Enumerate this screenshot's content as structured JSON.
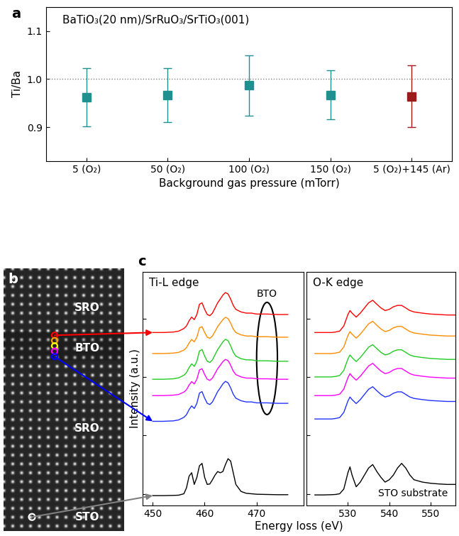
{
  "chart_data": [
    {
      "type": "scatter",
      "panel_label": "a",
      "annotation": "BaTiO₃(20 nm)/SrRuO₃/SrTiO₃(001)",
      "xlabel": "Background gas pressure (mTorr)",
      "ylabel": "Ti/Ba",
      "categories": [
        "5 (O₂)",
        "50 (O₂)",
        "100 (O₂)",
        "150 (O₂)",
        "5 (O₂)+145 (Ar)"
      ],
      "values": [
        0.962,
        0.966,
        0.987,
        0.967,
        0.964
      ],
      "errors": [
        0.061,
        0.056,
        0.063,
        0.051,
        0.064
      ],
      "colors": [
        "#1f8f8f",
        "#1f8f8f",
        "#1f8f8f",
        "#1f8f8f",
        "#9b1b1b"
      ],
      "marker": "square",
      "reference_line": 1.0,
      "ylim": [
        0.83,
        1.15
      ],
      "yticks": [
        0.9,
        {
          "value": 1.0,
          "label": "1.0"
        },
        1.1
      ],
      "grid": false
    },
    {
      "type": "image",
      "panel_label": "b",
      "labels": [
        "SRO",
        "BTO",
        "SRO",
        "STO"
      ]
    },
    {
      "type": "line",
      "panel_label": "c",
      "title": "Ti-L edge",
      "xlabel": "Energy loss (eV)",
      "ylabel": "Intensity (a.u.)",
      "annotations": [
        {
          "text": "BTO",
          "x": 472
        }
      ],
      "x": [
        450,
        452,
        454,
        455,
        456,
        456.5,
        457,
        457.5,
        458,
        458.5,
        459,
        459.5,
        460,
        460.5,
        461,
        461.5,
        462,
        462.5,
        463,
        463.5,
        464,
        464.5,
        465,
        465.5,
        466,
        467,
        468,
        469,
        470,
        472,
        474,
        476
      ],
      "series": [
        {
          "color": "#ff0000",
          "values": [
            7.4,
            7.4,
            7.42,
            7.46,
            7.57,
            7.68,
            7.9,
            8.06,
            7.95,
            8.17,
            8.61,
            8.67,
            8.39,
            8.17,
            8.12,
            8.23,
            8.45,
            8.67,
            8.83,
            9.0,
            9.11,
            9.05,
            8.83,
            8.56,
            8.39,
            8.28,
            8.23,
            8.23,
            8.19,
            8.19,
            8.17,
            8.17
          ]
        },
        {
          "color": "#ff8c00",
          "values": [
            6.5,
            6.5,
            6.52,
            6.55,
            6.65,
            6.75,
            6.95,
            7.1,
            7.0,
            7.2,
            7.6,
            7.65,
            7.4,
            7.2,
            7.15,
            7.25,
            7.45,
            7.65,
            7.8,
            7.95,
            8.05,
            8.0,
            7.8,
            7.55,
            7.4,
            7.3,
            7.25,
            7.25,
            7.22,
            7.22,
            7.2,
            7.2
          ]
        },
        {
          "color": "#22cc22",
          "values": [
            5.4,
            5.4,
            5.42,
            5.46,
            5.57,
            5.68,
            5.9,
            6.06,
            5.95,
            6.17,
            6.61,
            6.67,
            6.39,
            6.17,
            6.12,
            6.23,
            6.45,
            6.67,
            6.83,
            7.0,
            7.11,
            7.05,
            6.83,
            6.56,
            6.39,
            6.28,
            6.23,
            6.23,
            6.19,
            6.19,
            6.17,
            6.17
          ]
        },
        {
          "color": "#ff00ff",
          "values": [
            4.7,
            4.7,
            4.72,
            4.75,
            4.85,
            4.95,
            5.15,
            5.3,
            5.2,
            5.4,
            5.8,
            5.85,
            5.6,
            5.4,
            5.35,
            5.45,
            5.65,
            5.85,
            6.0,
            6.15,
            6.25,
            6.2,
            6.0,
            5.75,
            5.6,
            5.5,
            5.45,
            5.45,
            5.42,
            5.42,
            5.4,
            5.4
          ]
        },
        {
          "color": "#2233ff",
          "values": [
            3.6,
            3.6,
            3.62,
            3.66,
            3.77,
            3.88,
            4.1,
            4.26,
            4.15,
            4.37,
            4.81,
            4.87,
            4.59,
            4.37,
            4.32,
            4.43,
            4.65,
            4.87,
            5.03,
            5.2,
            5.31,
            5.25,
            5.03,
            4.76,
            4.59,
            4.48,
            4.43,
            4.43,
            4.39,
            4.39,
            4.37,
            4.37
          ]
        },
        {
          "color": "#000000",
          "values": [
            0.42,
            0.42,
            0.43,
            0.44,
            0.5,
            0.75,
            1.25,
            1.4,
            0.9,
            1.2,
            1.7,
            1.8,
            1.2,
            0.9,
            0.92,
            1.1,
            1.3,
            1.45,
            1.4,
            1.45,
            1.75,
            2.0,
            1.9,
            1.4,
            0.9,
            0.6,
            0.52,
            0.5,
            0.48,
            0.47,
            0.46,
            0.46
          ]
        }
      ],
      "xlim": [
        448,
        479
      ],
      "xticks": [
        450,
        460,
        470
      ],
      "ylim": [
        0,
        10
      ],
      "yticks": [
        0.5,
        3.0,
        5.5,
        8.0
      ],
      "tick_labels": "x"
    },
    {
      "type": "line",
      "title": "O-K edge",
      "annotations": [
        {
          "text": "STO substrate"
        }
      ],
      "x": [
        522,
        524,
        526,
        527,
        528,
        529,
        530,
        530.5,
        531,
        532,
        533,
        534,
        535,
        536,
        537,
        538,
        539,
        540,
        541,
        542,
        543,
        544,
        545,
        546,
        548,
        550,
        552,
        554,
        556
      ],
      "series": [
        {
          "color": "#ff0000",
          "values": [
            7.4,
            7.4,
            7.4,
            7.42,
            7.46,
            7.68,
            8.17,
            8.34,
            8.23,
            8.06,
            8.23,
            8.45,
            8.67,
            8.78,
            8.61,
            8.45,
            8.34,
            8.39,
            8.5,
            8.56,
            8.56,
            8.45,
            8.34,
            8.28,
            8.23,
            8.19,
            8.17,
            8.15,
            8.15
          ]
        },
        {
          "color": "#ff8c00",
          "values": [
            6.5,
            6.5,
            6.5,
            6.52,
            6.56,
            6.78,
            7.27,
            7.44,
            7.33,
            7.16,
            7.33,
            7.55,
            7.77,
            7.88,
            7.71,
            7.55,
            7.44,
            7.49,
            7.6,
            7.66,
            7.66,
            7.55,
            7.44,
            7.38,
            7.33,
            7.29,
            7.27,
            7.25,
            7.25
          ]
        },
        {
          "color": "#22cc22",
          "values": [
            5.5,
            5.5,
            5.5,
            5.52,
            5.56,
            5.78,
            6.27,
            6.44,
            6.33,
            6.16,
            6.33,
            6.55,
            6.77,
            6.88,
            6.71,
            6.55,
            6.44,
            6.49,
            6.6,
            6.66,
            6.66,
            6.55,
            6.44,
            6.38,
            6.33,
            6.29,
            6.27,
            6.25,
            6.25
          ]
        },
        {
          "color": "#ff00ff",
          "values": [
            4.7,
            4.7,
            4.7,
            4.72,
            4.76,
            4.98,
            5.47,
            5.64,
            5.53,
            5.36,
            5.53,
            5.75,
            5.97,
            6.08,
            5.91,
            5.75,
            5.64,
            5.69,
            5.8,
            5.86,
            5.86,
            5.75,
            5.64,
            5.58,
            5.53,
            5.49,
            5.47,
            5.45,
            5.45
          ]
        },
        {
          "color": "#2233ff",
          "values": [
            3.7,
            3.7,
            3.7,
            3.72,
            3.76,
            3.98,
            4.47,
            4.64,
            4.53,
            4.36,
            4.53,
            4.75,
            4.97,
            5.08,
            4.91,
            4.75,
            4.64,
            4.69,
            4.8,
            4.86,
            4.86,
            4.75,
            4.64,
            4.58,
            4.53,
            4.49,
            4.47,
            4.45,
            4.45
          ]
        },
        {
          "color": "#000000",
          "values": [
            0.45,
            0.45,
            0.46,
            0.47,
            0.5,
            0.7,
            1.4,
            1.65,
            1.3,
            0.8,
            1.0,
            1.3,
            1.6,
            1.75,
            1.45,
            1.2,
            1.0,
            1.1,
            1.3,
            1.6,
            1.8,
            1.6,
            1.3,
            1.1,
            1.0,
            0.95,
            0.92,
            0.9,
            0.9
          ]
        }
      ],
      "xlim": [
        520,
        556
      ],
      "xticks": [
        530,
        540,
        550
      ],
      "ylim": [
        0,
        10
      ],
      "yticks": [
        0.5,
        3.0,
        5.5,
        8.0
      ],
      "tick_labels": "x"
    }
  ]
}
